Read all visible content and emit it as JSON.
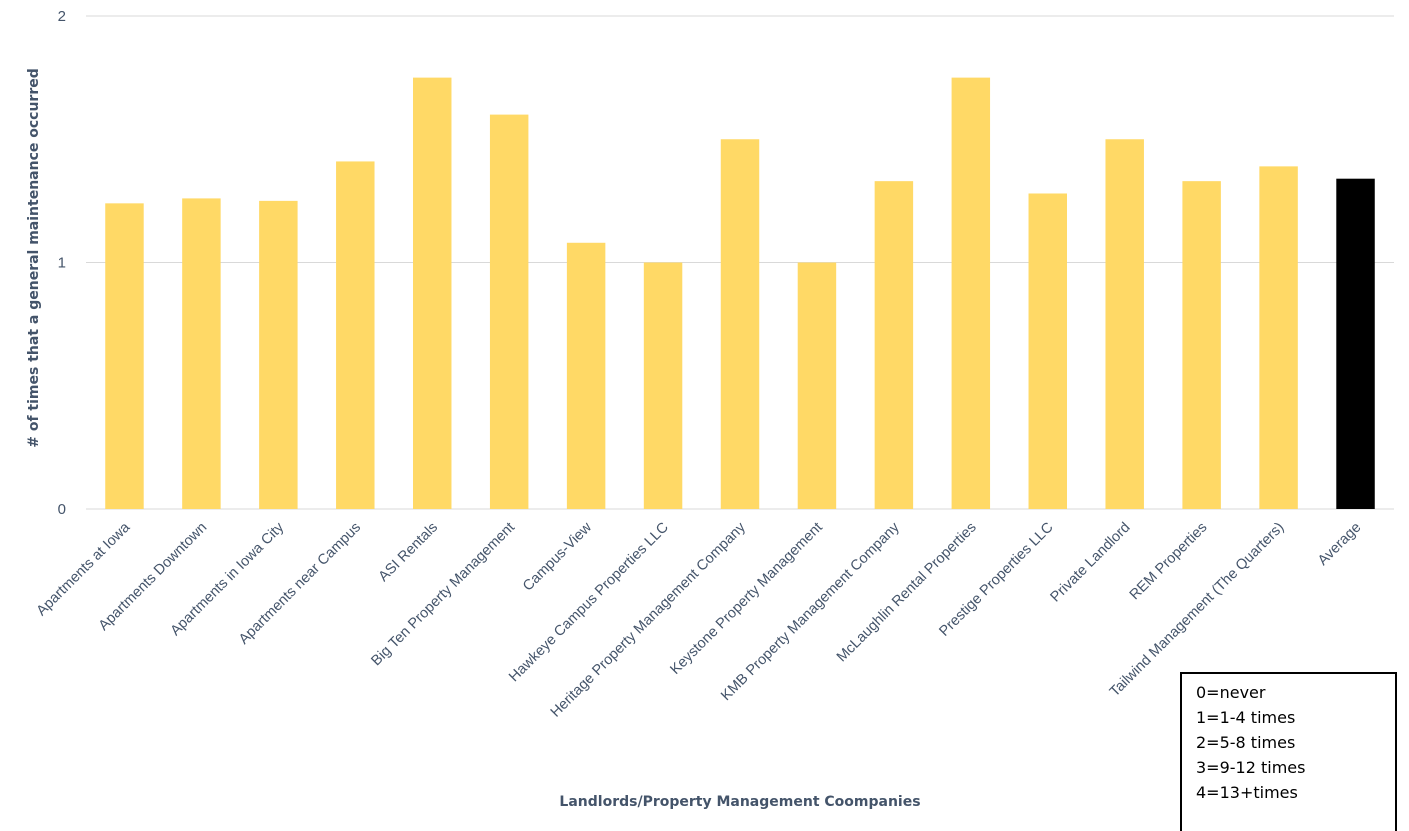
{
  "chart_data": {
    "type": "bar",
    "categories": [
      "Apartments at Iowa",
      "Apartments Downtown",
      "Apartments in Iowa City",
      "Apartments near Campus",
      "ASI Rentals",
      "Big Ten Property Management",
      "Campus-View",
      "Hawkeye Campus Properties LLC",
      "Heritage Property Management Company",
      "Keystone Property Management",
      "KMB Property Management Company",
      "McLaughlin Rental Properties",
      "Prestige Properties LLC",
      "Private Landlord",
      "REM Properties",
      "Tailwind Management (The Quarters)",
      "Average"
    ],
    "values": [
      1.24,
      1.26,
      1.25,
      1.41,
      1.75,
      1.6,
      1.08,
      1.0,
      1.5,
      1.0,
      1.33,
      1.75,
      1.28,
      1.5,
      1.33,
      1.39,
      1.34
    ],
    "colors": {
      "bar": "#ffd966",
      "average": "#000000",
      "grid": "#d9d9d9",
      "text": "#44546a"
    },
    "title": "",
    "xlabel": "Landlords/Property Management Coompanies",
    "ylabel": "# of times that a general maintenance occurred",
    "ylim": [
      0,
      2
    ],
    "yticks": [
      "0",
      "1",
      "2"
    ],
    "grid": true
  },
  "legend": {
    "lines": [
      "0=never",
      "1=1-4 times",
      "2=5-8 times",
      "3=9-12 times",
      "4=13+times"
    ]
  }
}
